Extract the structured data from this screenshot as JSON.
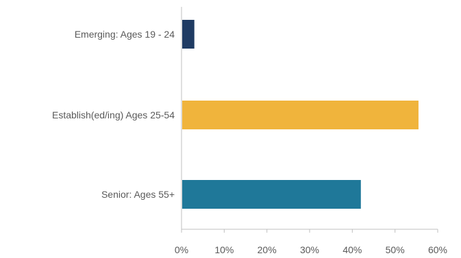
{
  "chart_data": {
    "type": "bar",
    "orientation": "horizontal",
    "categories": [
      "Emerging: Ages 19 - 24",
      "Establish(ed/ing) Ages 25-54",
      "Senior: Ages 55+"
    ],
    "values": [
      3,
      55.5,
      42
    ],
    "colors": [
      "#1f3b63",
      "#f0b43c",
      "#1f7899"
    ],
    "xlim": [
      0,
      60
    ],
    "xticks": [
      0,
      10,
      20,
      30,
      40,
      50,
      60
    ],
    "xtick_labels": [
      "0%",
      "10%",
      "20%",
      "30%",
      "40%",
      "50%",
      "60%"
    ],
    "grid": false,
    "legend": "none"
  }
}
